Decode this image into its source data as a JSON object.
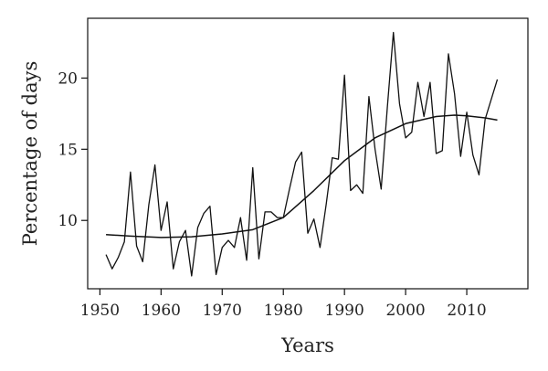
{
  "chart_data": {
    "type": "line",
    "xlabel": "Years",
    "ylabel": "Percentage of days",
    "xlim": [
      1948,
      2020
    ],
    "ylim": [
      5.2,
      24.2
    ],
    "xticks": [
      1950,
      1960,
      1970,
      1980,
      1990,
      2000,
      2010
    ],
    "yticks": [
      10,
      15,
      20
    ],
    "grid": false,
    "legend": "none",
    "colors": {
      "line": "#111111",
      "axis": "#111111"
    },
    "series": [
      {
        "x": [
          1951,
          1952,
          1953,
          1954,
          1955,
          1956,
          1957,
          1958,
          1959,
          1960,
          1961,
          1962,
          1963,
          1964,
          1965,
          1966,
          1967,
          1968,
          1969,
          1970,
          1971,
          1972,
          1973,
          1974,
          1975,
          1976,
          1977,
          1978,
          1979,
          1980,
          1981,
          1982,
          1983,
          1984,
          1985,
          1986,
          1987,
          1988,
          1989,
          1990,
          1991,
          1992,
          1993,
          1994,
          1995,
          1996,
          1997,
          1998,
          1999,
          2000,
          2001,
          2002,
          2003,
          2004,
          2005,
          2006,
          2007,
          2008,
          2009,
          2010,
          2011,
          2012,
          2013,
          2014,
          2015
        ],
        "values": [
          7.6,
          6.6,
          7.4,
          8.5,
          13.4,
          8.2,
          7.1,
          11.1,
          13.9,
          9.3,
          11.3,
          6.6,
          8.5,
          9.3,
          6.1,
          9.5,
          10.5,
          11.0,
          6.2,
          8.1,
          8.6,
          8.1,
          10.2,
          7.2,
          13.7,
          7.3,
          10.6,
          10.6,
          10.2,
          10.2,
          12.2,
          14.1,
          14.8,
          9.1,
          10.1,
          8.1,
          11.1,
          14.4,
          14.3,
          20.2,
          12.1,
          12.5,
          11.9,
          18.7,
          15.0,
          12.2,
          17.9,
          23.2,
          18.2,
          15.8,
          16.2,
          19.7,
          17.3,
          19.7,
          14.7,
          14.9,
          21.7,
          18.9,
          14.5,
          17.6,
          14.6,
          13.2,
          17.1,
          18.5,
          19.9
        ]
      },
      {
        "x": [
          1951,
          1955,
          1960,
          1965,
          1970,
          1975,
          1980,
          1985,
          1990,
          1995,
          2000,
          2005,
          2008,
          2010,
          2013,
          2015
        ],
        "values": [
          9.0,
          8.9,
          8.8,
          8.85,
          9.05,
          9.35,
          10.2,
          12.1,
          14.2,
          15.8,
          16.8,
          17.3,
          17.4,
          17.35,
          17.2,
          17.05
        ]
      }
    ]
  }
}
